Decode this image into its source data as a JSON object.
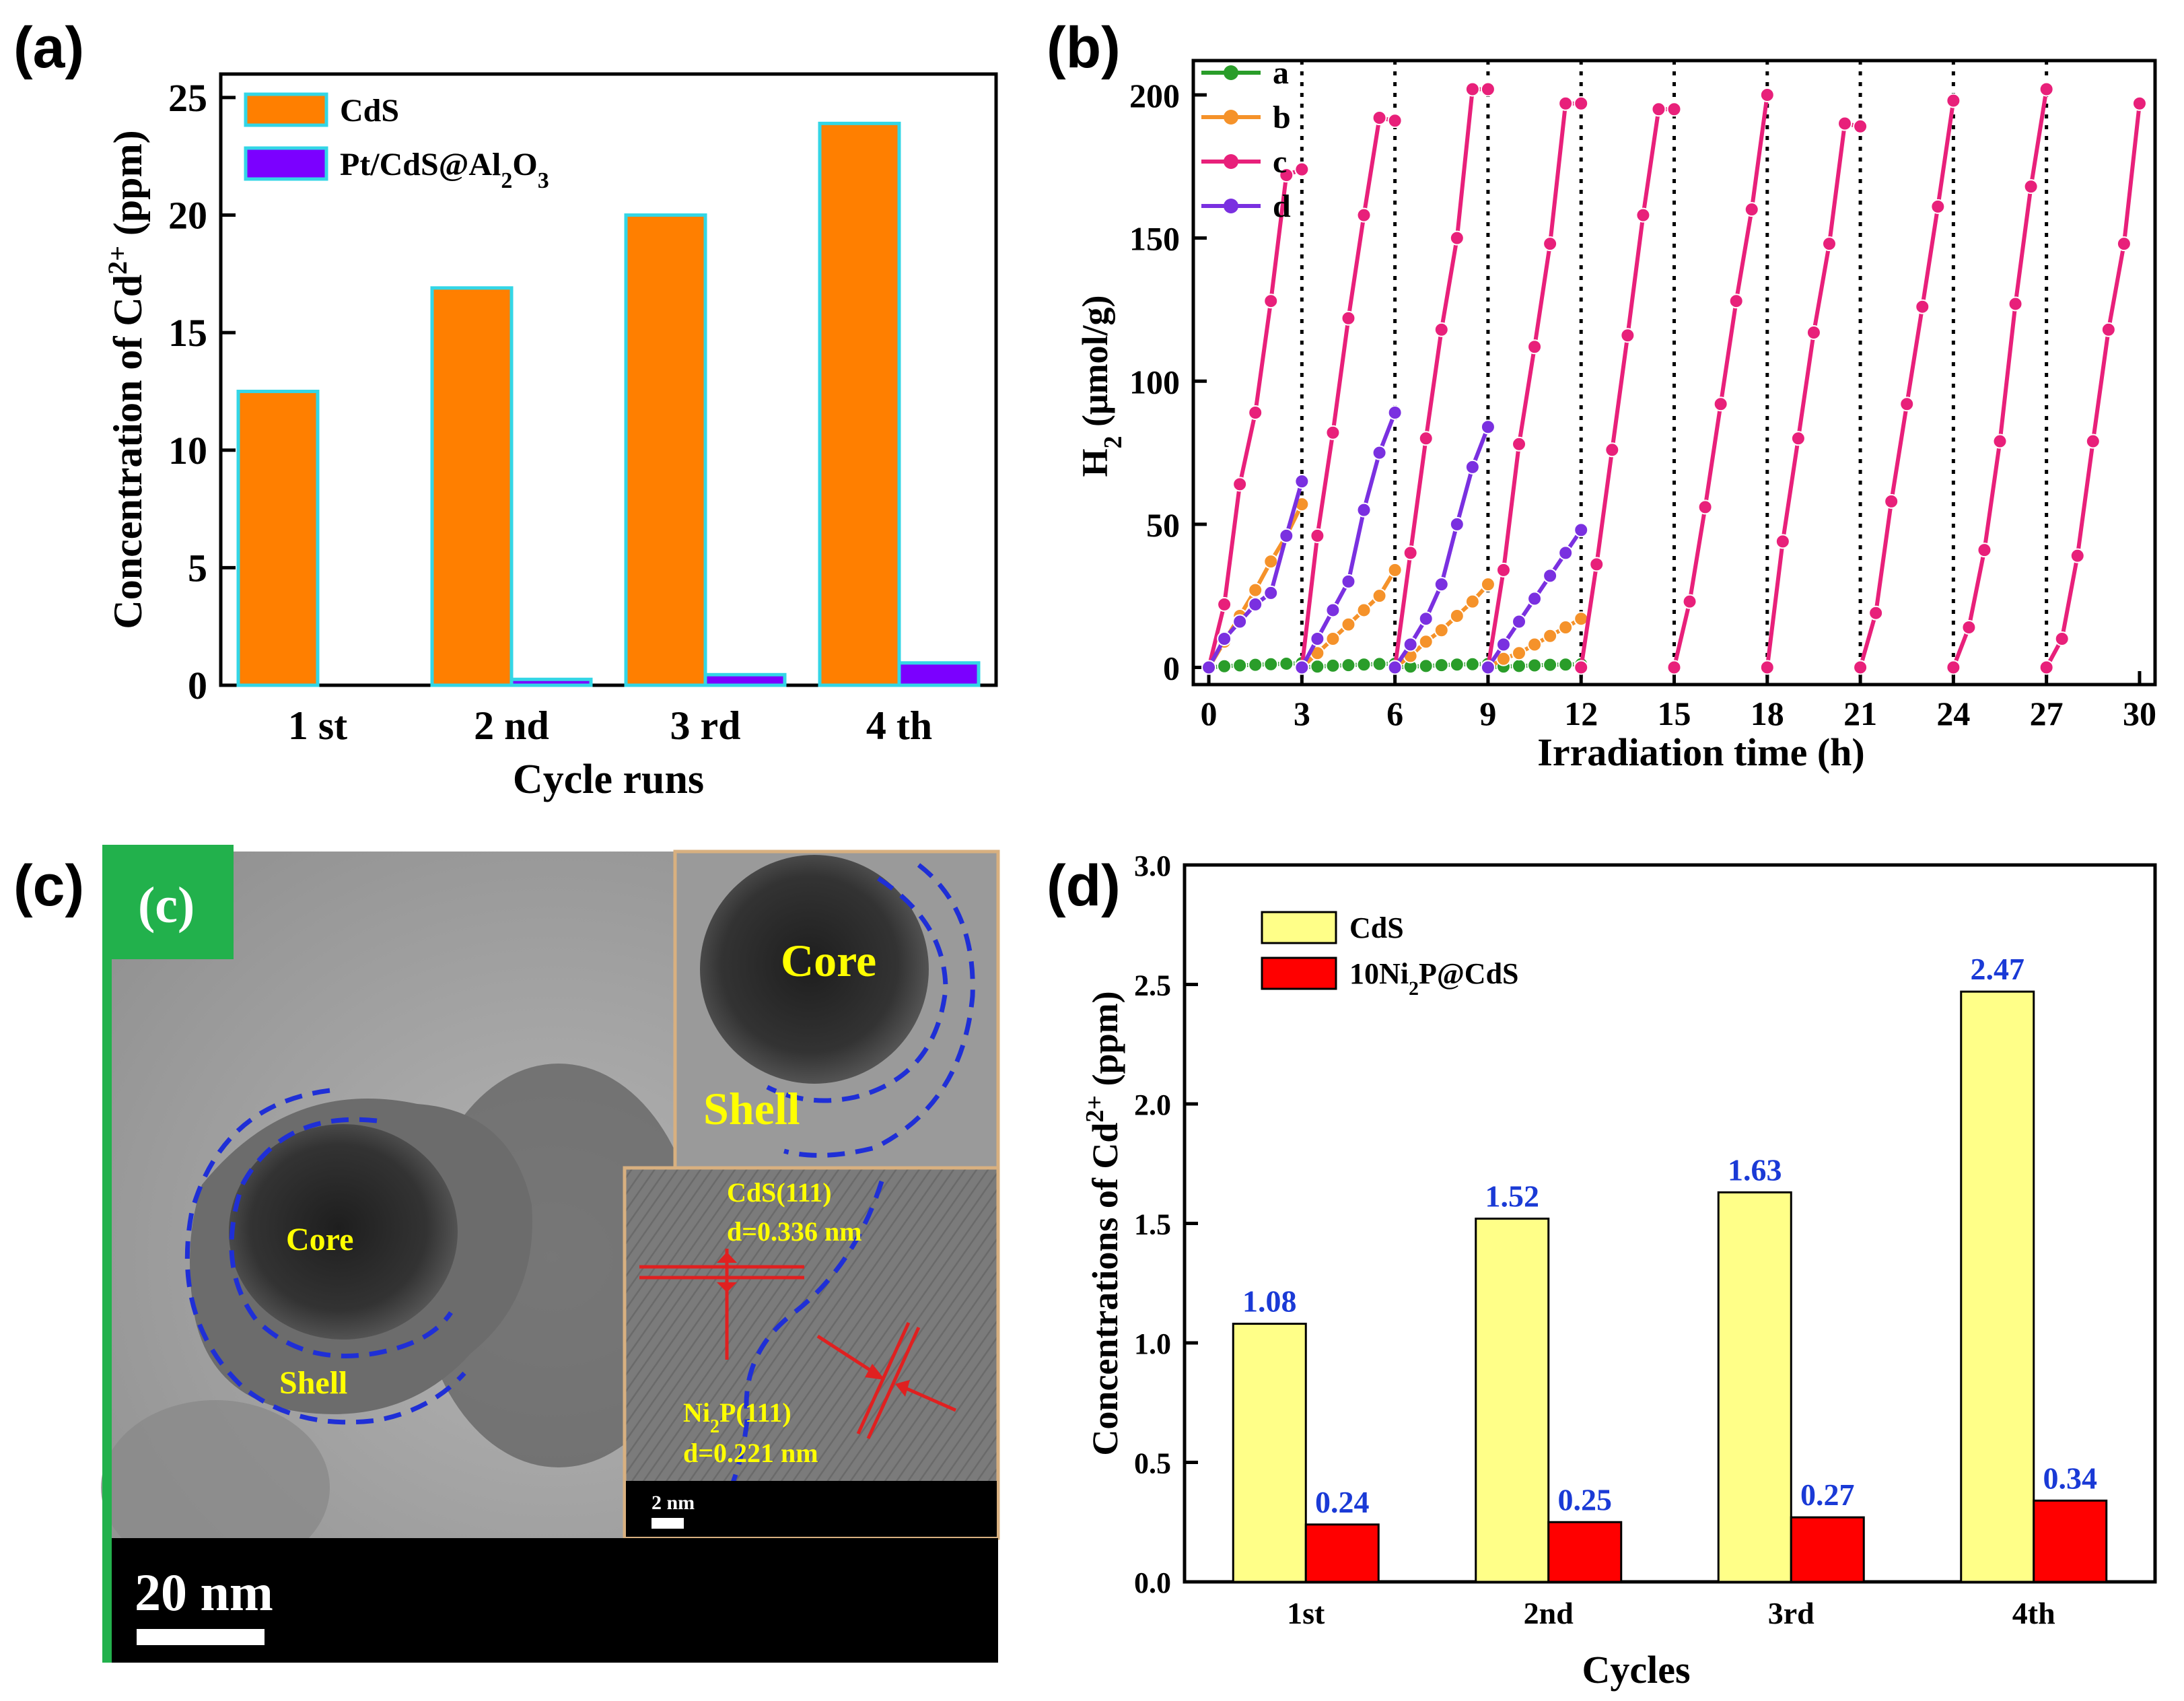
{
  "panels": {
    "a": {
      "letter": "(a)"
    },
    "b": {
      "letter": "(b)"
    },
    "c": {
      "letter": "(c)"
    },
    "d": {
      "letter": "(d)"
    }
  },
  "chart_data": [
    {
      "id": "a",
      "type": "bar",
      "title": "",
      "xlabel": "Cycle runs",
      "ylabel": "Concentration of Cd2+ (ppm)",
      "ylabel_parts": [
        "Concentration of Cd",
        "2+",
        " (ppm)"
      ],
      "categories": [
        "1 st",
        "2 nd",
        "3 rd",
        "4 th"
      ],
      "ylim": [
        0,
        26
      ],
      "yticks": [
        0,
        5,
        10,
        15,
        20,
        25
      ],
      "series": [
        {
          "name": "CdS",
          "name_parts": [
            "CdS"
          ],
          "color": "#ff7f00",
          "edge": "#33d6e6",
          "values": [
            12.5,
            16.9,
            20.0,
            23.9
          ]
        },
        {
          "name": "Pt/CdS@Al2O3",
          "name_parts": [
            "Pt/CdS@Al",
            "2",
            "O",
            "3"
          ],
          "color": "#7b00ff",
          "edge": "#33d6e6",
          "values": [
            0,
            0.25,
            0.45,
            0.95
          ]
        }
      ],
      "legend": "top-left"
    },
    {
      "id": "b",
      "type": "line",
      "xlabel": "Irradiation time (h)",
      "ylabel": "H2 (μmol/g)",
      "ylabel_parts": [
        "H",
        "2",
        " (μmol/g)"
      ],
      "xlim": [
        -0.5,
        30.5
      ],
      "ylim": [
        -6,
        212
      ],
      "xticks": [
        0,
        3,
        6,
        9,
        12,
        15,
        18,
        21,
        24,
        27,
        30
      ],
      "yticks": [
        0,
        50,
        100,
        150,
        200
      ],
      "cycle_dividers": [
        3,
        6,
        9,
        12,
        15,
        18,
        21,
        24,
        27
      ],
      "series": [
        {
          "name": "a",
          "color": "#2a9d2a",
          "segments": [
            [
              [
                0,
                0
              ],
              [
                0.5,
                0.4
              ],
              [
                1,
                0.7
              ],
              [
                1.5,
                0.9
              ],
              [
                2,
                1.1
              ],
              [
                2.5,
                1.3
              ],
              [
                3,
                1.5
              ]
            ],
            [
              [
                3,
                0
              ],
              [
                3.5,
                0.3
              ],
              [
                4,
                0.6
              ],
              [
                4.5,
                0.8
              ],
              [
                5,
                1
              ],
              [
                5.5,
                1.2
              ],
              [
                6,
                1.3
              ]
            ],
            [
              [
                6,
                0
              ],
              [
                6.5,
                0.3
              ],
              [
                7,
                0.5
              ],
              [
                7.5,
                0.8
              ],
              [
                8,
                1
              ],
              [
                8.5,
                1.1
              ],
              [
                9,
                1.2
              ]
            ],
            [
              [
                9,
                0
              ],
              [
                9.5,
                0.3
              ],
              [
                10,
                0.5
              ],
              [
                10.5,
                0.7
              ],
              [
                11,
                0.9
              ],
              [
                11.5,
                1
              ],
              [
                12,
                1.1
              ]
            ]
          ]
        },
        {
          "name": "b",
          "color": "#f5922a",
          "segments": [
            [
              [
                0,
                0
              ],
              [
                0.5,
                9
              ],
              [
                1,
                18
              ],
              [
                1.5,
                27
              ],
              [
                2,
                37
              ],
              [
                2.5,
                46
              ],
              [
                3,
                57
              ]
            ],
            [
              [
                3,
                0
              ],
              [
                3.5,
                5
              ],
              [
                4,
                10
              ],
              [
                4.5,
                15
              ],
              [
                5,
                20
              ],
              [
                5.5,
                25
              ],
              [
                6,
                34
              ]
            ],
            [
              [
                6,
                0
              ],
              [
                6.5,
                4
              ],
              [
                7,
                9
              ],
              [
                7.5,
                13
              ],
              [
                8,
                18
              ],
              [
                8.5,
                23
              ],
              [
                9,
                29
              ]
            ],
            [
              [
                9,
                0
              ],
              [
                9.5,
                3
              ],
              [
                10,
                5
              ],
              [
                10.5,
                8
              ],
              [
                11,
                11
              ],
              [
                11.5,
                14
              ],
              [
                12,
                17
              ]
            ]
          ]
        },
        {
          "name": "c",
          "color": "#e8207a",
          "segments": [
            [
              [
                0,
                0
              ],
              [
                0.5,
                22
              ],
              [
                1,
                64
              ],
              [
                1.5,
                89
              ],
              [
                2,
                128
              ],
              [
                2.5,
                172
              ],
              [
                3,
                174
              ]
            ],
            [
              [
                3,
                0
              ],
              [
                3.5,
                46
              ],
              [
                4,
                82
              ],
              [
                4.5,
                122
              ],
              [
                5,
                158
              ],
              [
                5.5,
                192
              ],
              [
                6,
                191
              ]
            ],
            [
              [
                6,
                0
              ],
              [
                6.5,
                40
              ],
              [
                7,
                80
              ],
              [
                7.5,
                118
              ],
              [
                8,
                150
              ],
              [
                8.5,
                202
              ],
              [
                9,
                202
              ]
            ],
            [
              [
                9,
                0
              ],
              [
                9.5,
                34
              ],
              [
                10,
                78
              ],
              [
                10.5,
                112
              ],
              [
                11,
                148
              ],
              [
                11.5,
                197
              ],
              [
                12,
                197
              ]
            ],
            [
              [
                12,
                0
              ],
              [
                12.5,
                36
              ],
              [
                13,
                76
              ],
              [
                13.5,
                116
              ],
              [
                14,
                158
              ],
              [
                14.5,
                195
              ],
              [
                15,
                195
              ]
            ],
            [
              [
                15,
                0
              ],
              [
                15.5,
                23
              ],
              [
                16,
                56
              ],
              [
                16.5,
                92
              ],
              [
                17,
                128
              ],
              [
                17.5,
                160
              ],
              [
                18,
                200
              ]
            ],
            [
              [
                18,
                0
              ],
              [
                18.5,
                44
              ],
              [
                19,
                80
              ],
              [
                19.5,
                117
              ],
              [
                20,
                148
              ],
              [
                20.5,
                190
              ],
              [
                21,
                189
              ]
            ],
            [
              [
                21,
                0
              ],
              [
                21.5,
                19
              ],
              [
                22,
                58
              ],
              [
                22.5,
                92
              ],
              [
                23,
                126
              ],
              [
                23.5,
                161
              ],
              [
                24,
                198
              ]
            ],
            [
              [
                24,
                0
              ],
              [
                24.5,
                14
              ],
              [
                25,
                41
              ],
              [
                25.5,
                79
              ],
              [
                26,
                127
              ],
              [
                26.5,
                168
              ],
              [
                27,
                202
              ]
            ],
            [
              [
                27,
                0
              ],
              [
                27.5,
                10
              ],
              [
                28,
                39
              ],
              [
                28.5,
                79
              ],
              [
                29,
                118
              ],
              [
                29.5,
                148
              ],
              [
                30,
                197
              ]
            ]
          ]
        },
        {
          "name": "d",
          "color": "#7a30e0",
          "segments": [
            [
              [
                0,
                0
              ],
              [
                0.5,
                10
              ],
              [
                1,
                16
              ],
              [
                1.5,
                22
              ],
              [
                2,
                26
              ],
              [
                2.5,
                46
              ],
              [
                3,
                65
              ]
            ],
            [
              [
                3,
                0
              ],
              [
                3.5,
                10
              ],
              [
                4,
                20
              ],
              [
                4.5,
                30
              ],
              [
                5,
                55
              ],
              [
                5.5,
                75
              ],
              [
                6,
                89
              ]
            ],
            [
              [
                6,
                0
              ],
              [
                6.5,
                8
              ],
              [
                7,
                17
              ],
              [
                7.5,
                29
              ],
              [
                8,
                50
              ],
              [
                8.5,
                70
              ],
              [
                9,
                84
              ]
            ],
            [
              [
                9,
                0
              ],
              [
                9.5,
                8
              ],
              [
                10,
                16
              ],
              [
                10.5,
                24
              ],
              [
                11,
                32
              ],
              [
                11.5,
                40
              ],
              [
                12,
                48
              ]
            ]
          ]
        }
      ],
      "legend": "top-left"
    },
    {
      "id": "d",
      "type": "bar",
      "xlabel": "Cycles",
      "ylabel": "Concentrations of Cd2+ (ppm)",
      "ylabel_parts": [
        "Concentrations of Cd",
        "2+",
        " (ppm)"
      ],
      "categories": [
        "1st",
        "2nd",
        "3rd",
        "4th"
      ],
      "ylim": [
        0,
        3.0
      ],
      "yticks": [
        "0.0",
        "0.5",
        "1.0",
        "1.5",
        "2.0",
        "2.5",
        "3.0"
      ],
      "series": [
        {
          "name": "CdS",
          "name_parts": [
            "CdS"
          ],
          "color": "#ffff88",
          "edge": "#000000",
          "values": [
            1.08,
            1.52,
            1.63,
            2.47
          ],
          "labels": [
            "1.08",
            "1.52",
            "1.63",
            "2.47"
          ]
        },
        {
          "name": "10Ni2P@CdS",
          "name_parts": [
            "10Ni",
            "2",
            "P@CdS"
          ],
          "color": "#ff0000",
          "edge": "#000000",
          "values": [
            0.24,
            0.25,
            0.27,
            0.34
          ],
          "labels": [
            "0.24",
            "0.25",
            "0.27",
            "0.34"
          ]
        }
      ],
      "label_color": "#1a3ad6",
      "legend": "top-left"
    }
  ],
  "micrograph": {
    "badge": "(c)",
    "core_main": "Core",
    "shell_main": "Shell",
    "core_inset": "Core",
    "shell_inset": "Shell",
    "cds_plane": "CdS(111)",
    "cds_d": "d=0.336 nm",
    "ni2p_plane_parts": [
      "Ni",
      "2",
      "P(111)"
    ],
    "ni2p_d": "d=0.221 nm",
    "inset_scale": "2 nm",
    "scale": "20 nm",
    "badge_color": "#22b14c",
    "dash_color": "#1f2fd6",
    "label_color": "#ffff00",
    "arrow_color": "#e02020"
  }
}
